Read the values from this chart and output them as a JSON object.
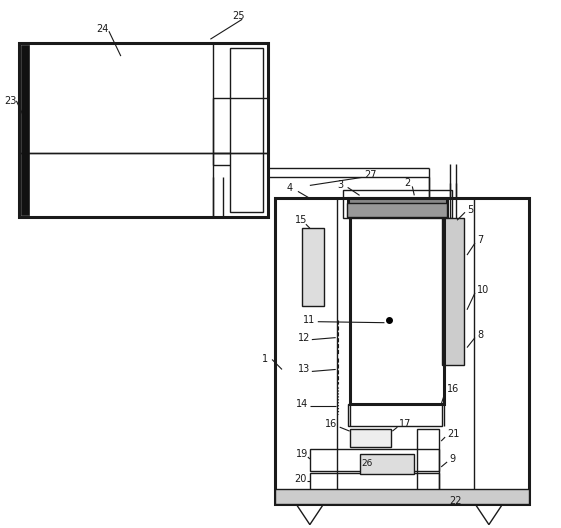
{
  "bg_color": "#ffffff",
  "line_color": "#1a1a1a",
  "lw": 1.0,
  "tlw": 2.2,
  "fig_w": 5.61,
  "fig_h": 5.28,
  "dpi": 100
}
